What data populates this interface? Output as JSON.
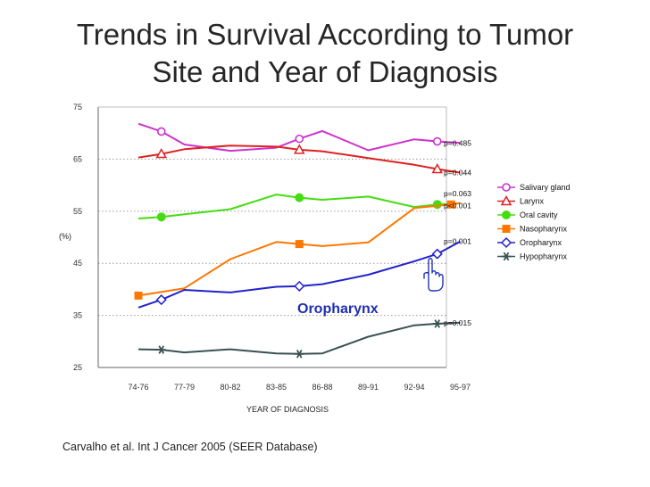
{
  "title": {
    "line1": "Trends in Survival According to Tumor",
    "line2": "Site and Year of Diagnosis"
  },
  "citation": "Carvalho et al. Int J Cancer 2005  (SEER Database)",
  "chart_data": {
    "type": "line",
    "xlabel": "YEAR OF DIAGNOSIS",
    "ylabel": "(%)",
    "ylim": [
      25,
      75
    ],
    "yticks": [
      25,
      35,
      45,
      55,
      65,
      75
    ],
    "categories": [
      "74-76",
      "77-79",
      "80-82",
      "83-85",
      "86-88",
      "89-91",
      "92-94",
      "95-97"
    ],
    "grid": "dotted horizontal lines at 35, 45, 55, 65",
    "legend_position": "right",
    "annotation": "Oropharynx",
    "series": [
      {
        "name": "Salivary gland",
        "color": "#cc33cc",
        "marker": "circle-open",
        "x": [
          0,
          0.5,
          1,
          2,
          3,
          3.5,
          4,
          5,
          6,
          6.5,
          7
        ],
        "values": [
          71.8,
          70.3,
          67.8,
          66.6,
          67.2,
          68.9,
          70.4,
          66.7,
          68.8,
          68.4,
          68.1
        ],
        "marker_x": [
          0.5,
          3.5,
          6.5
        ],
        "pvalue": "p=0.485"
      },
      {
        "name": "Larynx",
        "color": "#dd2222",
        "marker": "triangle-open",
        "x": [
          0,
          0.5,
          1,
          2,
          3,
          3.5,
          4,
          5,
          6,
          6.5,
          7
        ],
        "values": [
          65.3,
          66.0,
          66.9,
          67.6,
          67.4,
          66.8,
          66.5,
          65.2,
          63.9,
          63.1,
          62.4
        ],
        "marker_x": [
          0.5,
          3.5,
          6.5
        ],
        "pvalue": "p=0.044"
      },
      {
        "name": "Oral cavity",
        "color": "#44dd11",
        "marker": "circle-filled",
        "x": [
          0,
          0.5,
          1,
          2,
          3,
          3.5,
          4,
          5,
          6,
          6.5,
          7
        ],
        "values": [
          53.6,
          53.9,
          54.4,
          55.4,
          58.2,
          57.6,
          57.2,
          57.8,
          55.8,
          56.3,
          56.5
        ],
        "marker_x": [
          0.5,
          3.5,
          6.5
        ],
        "pvalue": "p=0.063"
      },
      {
        "name": "Nasopharynx",
        "color": "#ff7700",
        "marker": "square-filled",
        "x": [
          0,
          1,
          2,
          3,
          3.5,
          4,
          5,
          6,
          6.8,
          7
        ],
        "values": [
          38.8,
          40.2,
          45.8,
          49.1,
          48.7,
          48.3,
          49.0,
          55.6,
          56.3,
          56.6
        ],
        "marker_x": [
          0,
          3.5,
          6.8
        ],
        "pvalue": "p<0.001"
      },
      {
        "name": "Oropharynx",
        "color": "#2222cc",
        "marker": "diamond-open",
        "x": [
          0,
          0.5,
          1,
          2,
          3,
          3.5,
          4,
          5,
          6,
          6.5,
          7
        ],
        "values": [
          36.5,
          38.0,
          39.9,
          39.4,
          40.5,
          40.6,
          41.0,
          42.8,
          45.4,
          46.8,
          49.2
        ],
        "marker_x": [
          0.5,
          3.5,
          6.5
        ],
        "pvalue": "p=0.001"
      },
      {
        "name": "Hypopharynx",
        "color": "#3a5252",
        "marker": "asterisk",
        "x": [
          0,
          0.5,
          1,
          2,
          3,
          3.5,
          4,
          5,
          6,
          6.5,
          7
        ],
        "values": [
          28.5,
          28.4,
          27.9,
          28.5,
          27.7,
          27.6,
          27.7,
          30.9,
          33.1,
          33.4,
          33.6
        ],
        "marker_x": [
          0.5,
          3.5,
          6.5
        ],
        "pvalue": "p=0.015"
      }
    ],
    "pvalue_y": [
      68.1,
      62.4,
      58.4,
      56.1,
      49.2,
      33.6
    ]
  }
}
